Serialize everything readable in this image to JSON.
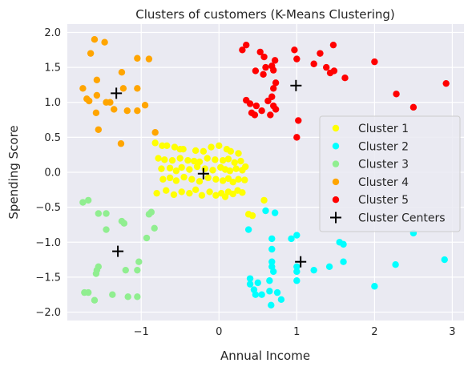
{
  "chart_data": {
    "type": "scatter",
    "title": "Clusters of customers (K-Means Clustering)",
    "xlabel": "Annual Income",
    "ylabel": "Spending Score",
    "xlim": [
      -1.95,
      3.15
    ],
    "ylim": [
      -2.12,
      2.12
    ],
    "xticks": [
      -1,
      0,
      1,
      2,
      3
    ],
    "yticks": [
      -2.0,
      -1.5,
      -1.0,
      -0.5,
      0.0,
      0.5,
      1.0,
      1.5,
      2.0
    ],
    "xtick_labels": [
      "−1",
      "0",
      "1",
      "2",
      "3"
    ],
    "ytick_labels": [
      "−2.0",
      "−1.5",
      "−1.0",
      "−0.5",
      "0.0",
      "0.5",
      "1.0",
      "1.5",
      "2.0"
    ],
    "grid": true,
    "legend_position": "center-right",
    "series": [
      {
        "name": "Cluster 1",
        "color": "#ffff00",
        "points": [
          [
            -0.82,
            0.42
          ],
          [
            -0.73,
            0.38
          ],
          [
            -0.67,
            0.38
          ],
          [
            -0.57,
            0.36
          ],
          [
            -0.5,
            0.33
          ],
          [
            -0.46,
            0.33
          ],
          [
            -0.3,
            0.31
          ],
          [
            -0.2,
            0.3
          ],
          [
            -0.1,
            0.36
          ],
          [
            0.0,
            0.38
          ],
          [
            0.1,
            0.33
          ],
          [
            0.15,
            0.3
          ],
          [
            0.25,
            0.27
          ],
          [
            -0.78,
            0.2
          ],
          [
            -0.7,
            0.18
          ],
          [
            -0.6,
            0.17
          ],
          [
            -0.5,
            0.2
          ],
          [
            -0.4,
            0.17
          ],
          [
            -0.32,
            0.16
          ],
          [
            -0.25,
            0.15
          ],
          [
            -0.15,
            0.2
          ],
          [
            -0.05,
            0.18
          ],
          [
            0.05,
            0.17
          ],
          [
            0.12,
            0.19
          ],
          [
            0.2,
            0.14
          ],
          [
            0.28,
            0.16
          ],
          [
            -0.74,
            0.05
          ],
          [
            -0.63,
            0.06
          ],
          [
            -0.55,
            0.02
          ],
          [
            -0.48,
            0.07
          ],
          [
            -0.38,
            0.04
          ],
          [
            -0.28,
            0.08
          ],
          [
            -0.18,
            0.05
          ],
          [
            -0.08,
            0.03
          ],
          [
            0.02,
            0.07
          ],
          [
            0.08,
            0.04
          ],
          [
            0.14,
            0.02
          ],
          [
            0.22,
            0.05
          ],
          [
            0.3,
            0.03
          ],
          [
            0.34,
            0.08
          ],
          [
            -0.72,
            -0.1
          ],
          [
            -0.63,
            -0.08
          ],
          [
            -0.55,
            -0.12
          ],
          [
            -0.45,
            -0.07
          ],
          [
            -0.35,
            -0.1
          ],
          [
            -0.25,
            -0.13
          ],
          [
            -0.14,
            -0.08
          ],
          [
            -0.04,
            -0.1
          ],
          [
            0.05,
            -0.12
          ],
          [
            0.12,
            -0.09
          ],
          [
            0.18,
            -0.14
          ],
          [
            0.25,
            -0.1
          ],
          [
            0.33,
            -0.11
          ],
          [
            -0.8,
            -0.3
          ],
          [
            -0.68,
            -0.26
          ],
          [
            -0.58,
            -0.32
          ],
          [
            -0.48,
            -0.28
          ],
          [
            -0.38,
            -0.3
          ],
          [
            -0.3,
            -0.25
          ],
          [
            -0.22,
            -0.33
          ],
          [
            -0.12,
            -0.28
          ],
          [
            -0.04,
            -0.33
          ],
          [
            0.03,
            -0.3
          ],
          [
            0.08,
            -0.35
          ],
          [
            0.12,
            -0.28
          ],
          [
            0.18,
            -0.31
          ],
          [
            0.24,
            -0.26
          ],
          [
            0.3,
            -0.29
          ],
          [
            0.58,
            -0.4
          ],
          [
            0.38,
            -0.6
          ],
          [
            0.43,
            -0.62
          ]
        ]
      },
      {
        "name": "Cluster 2",
        "color": "#00ffff",
        "points": [
          [
            0.72,
            -0.58
          ],
          [
            0.6,
            -0.55
          ],
          [
            0.38,
            -0.82
          ],
          [
            0.68,
            -0.95
          ],
          [
            0.68,
            -1.1
          ],
          [
            0.93,
            -0.95
          ],
          [
            1.0,
            -0.9
          ],
          [
            0.68,
            -1.28
          ],
          [
            0.68,
            -1.35
          ],
          [
            0.7,
            -1.42
          ],
          [
            0.65,
            -1.55
          ],
          [
            1.0,
            -1.35
          ],
          [
            1.0,
            -1.42
          ],
          [
            0.4,
            -1.52
          ],
          [
            0.4,
            -1.6
          ],
          [
            0.5,
            -1.58
          ],
          [
            0.45,
            -1.68
          ],
          [
            0.47,
            -1.75
          ],
          [
            0.55,
            -1.75
          ],
          [
            0.65,
            -1.7
          ],
          [
            0.75,
            -1.72
          ],
          [
            0.67,
            -1.9
          ],
          [
            0.8,
            -1.82
          ],
          [
            1.0,
            -1.55
          ],
          [
            1.22,
            -1.4
          ],
          [
            1.42,
            -1.35
          ],
          [
            1.55,
            -1.0
          ],
          [
            1.6,
            -1.03
          ],
          [
            1.6,
            -1.28
          ],
          [
            2.0,
            -1.63
          ],
          [
            2.27,
            -1.32
          ],
          [
            2.5,
            -0.87
          ],
          [
            2.9,
            -1.25
          ]
        ]
      },
      {
        "name": "Cluster 3",
        "color": "#90ee90",
        "points": [
          [
            -1.75,
            -0.43
          ],
          [
            -1.68,
            -0.4
          ],
          [
            -1.55,
            -0.59
          ],
          [
            -1.45,
            -0.59
          ],
          [
            -1.45,
            -0.82
          ],
          [
            -1.25,
            -0.7
          ],
          [
            -1.22,
            -0.73
          ],
          [
            -0.9,
            -0.6
          ],
          [
            -0.87,
            -0.57
          ],
          [
            -0.83,
            -0.8
          ],
          [
            -0.93,
            -0.94
          ],
          [
            -1.55,
            -1.35
          ],
          [
            -1.57,
            -1.4
          ],
          [
            -1.58,
            -1.45
          ],
          [
            -1.2,
            -1.4
          ],
          [
            -1.05,
            -1.4
          ],
          [
            -1.03,
            -1.28
          ],
          [
            -1.73,
            -1.72
          ],
          [
            -1.68,
            -1.72
          ],
          [
            -1.6,
            -1.83
          ],
          [
            -1.37,
            -1.75
          ],
          [
            -1.17,
            -1.78
          ],
          [
            -1.05,
            -1.78
          ]
        ]
      },
      {
        "name": "Cluster 4",
        "color": "#ffa500",
        "points": [
          [
            -1.6,
            1.9
          ],
          [
            -1.47,
            1.86
          ],
          [
            -1.65,
            1.7
          ],
          [
            -1.25,
            1.43
          ],
          [
            -1.57,
            1.32
          ],
          [
            -1.23,
            1.2
          ],
          [
            -1.05,
            1.63
          ],
          [
            -0.9,
            1.62
          ],
          [
            -1.75,
            1.2
          ],
          [
            -1.57,
            1.1
          ],
          [
            -1.7,
            1.05
          ],
          [
            -1.67,
            1.02
          ],
          [
            -1.45,
            1.0
          ],
          [
            -1.4,
            1.0
          ],
          [
            -1.05,
            1.2
          ],
          [
            -1.05,
            0.88
          ],
          [
            -1.18,
            0.88
          ],
          [
            -1.35,
            0.9
          ],
          [
            -1.58,
            0.85
          ],
          [
            -0.95,
            0.96
          ],
          [
            -1.55,
            0.61
          ],
          [
            -0.82,
            0.57
          ],
          [
            -1.26,
            0.41
          ]
        ]
      },
      {
        "name": "Cluster 5",
        "color": "#ff0000",
        "points": [
          [
            0.35,
            1.82
          ],
          [
            0.3,
            1.75
          ],
          [
            0.53,
            1.72
          ],
          [
            0.58,
            1.65
          ],
          [
            0.72,
            1.6
          ],
          [
            0.68,
            1.52
          ],
          [
            0.7,
            1.46
          ],
          [
            0.6,
            1.5
          ],
          [
            0.47,
            1.45
          ],
          [
            0.57,
            1.4
          ],
          [
            0.73,
            1.28
          ],
          [
            0.7,
            1.2
          ],
          [
            0.97,
            1.75
          ],
          [
            1.0,
            1.62
          ],
          [
            1.3,
            1.7
          ],
          [
            1.47,
            1.82
          ],
          [
            1.22,
            1.55
          ],
          [
            1.38,
            1.5
          ],
          [
            1.43,
            1.42
          ],
          [
            1.48,
            1.45
          ],
          [
            1.62,
            1.35
          ],
          [
            2.0,
            1.58
          ],
          [
            2.28,
            1.12
          ],
          [
            2.5,
            0.93
          ],
          [
            2.92,
            1.27
          ],
          [
            0.35,
            1.03
          ],
          [
            0.4,
            0.98
          ],
          [
            0.48,
            0.95
          ],
          [
            0.42,
            0.85
          ],
          [
            0.46,
            0.82
          ],
          [
            0.55,
            0.88
          ],
          [
            0.63,
            1.02
          ],
          [
            0.68,
            1.08
          ],
          [
            0.7,
            0.95
          ],
          [
            0.73,
            0.9
          ],
          [
            0.66,
            0.82
          ],
          [
            1.02,
            0.74
          ],
          [
            1.0,
            0.5
          ]
        ]
      }
    ],
    "centers": {
      "name": "Cluster Centers",
      "color": "#000000",
      "points": [
        [
          -1.32,
          1.13
        ],
        [
          -0.2,
          -0.02
        ],
        [
          0.99,
          1.24
        ],
        [
          1.05,
          -1.28
        ],
        [
          -1.3,
          -1.13
        ]
      ]
    }
  }
}
